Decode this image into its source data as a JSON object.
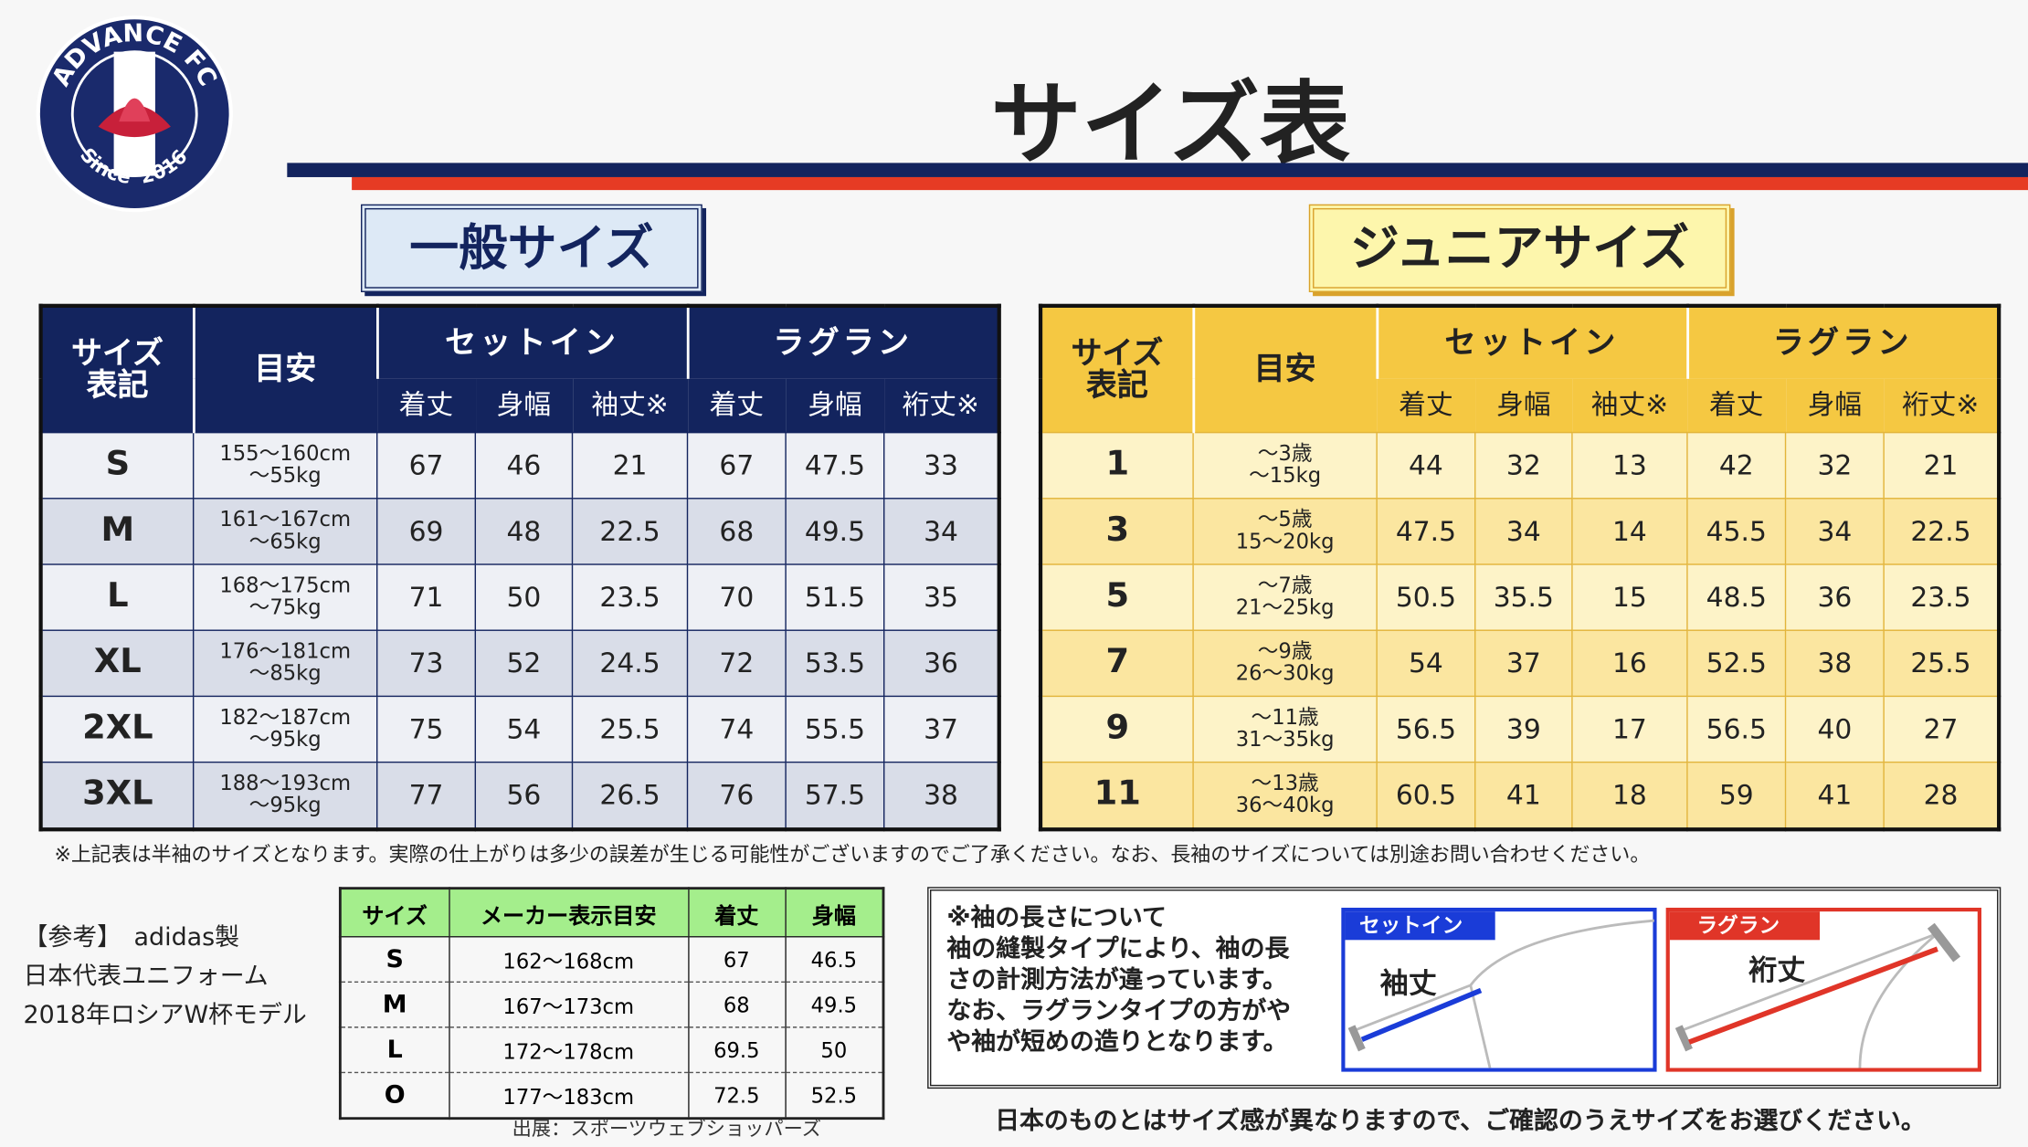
{
  "logo": {
    "name": "ADVANCE FC",
    "since": "Since",
    "year": "2016"
  },
  "title": "サイズ表",
  "general": {
    "heading": "一般サイズ",
    "headers": {
      "size": [
        "サイズ",
        "表記"
      ],
      "guide": "目安",
      "groups": [
        "セットイン",
        "ラグラン"
      ],
      "sub": [
        "着丈",
        "身幅",
        "袖丈※",
        "着丈",
        "身幅",
        "裄丈※"
      ]
    },
    "rows": [
      {
        "size": "S",
        "guide": [
          "155～160cm",
          "～55kg"
        ],
        "values": [
          67,
          46,
          21,
          67,
          47.5,
          33
        ]
      },
      {
        "size": "M",
        "guide": [
          "161～167cm",
          "～65kg"
        ],
        "values": [
          69,
          48,
          22.5,
          68,
          49.5,
          34
        ]
      },
      {
        "size": "L",
        "guide": [
          "168～175cm",
          "～75kg"
        ],
        "values": [
          71,
          50,
          23.5,
          70,
          51.5,
          35
        ]
      },
      {
        "size": "XL",
        "guide": [
          "176～181cm",
          "～85kg"
        ],
        "values": [
          73,
          52,
          24.5,
          72,
          53.5,
          36
        ]
      },
      {
        "size": "2XL",
        "guide": [
          "182～187cm",
          "～95kg"
        ],
        "values": [
          75,
          54,
          25.5,
          74,
          55.5,
          37
        ]
      },
      {
        "size": "3XL",
        "guide": [
          "188～193cm",
          "～95kg"
        ],
        "values": [
          77,
          56,
          26.5,
          76,
          57.5,
          38
        ]
      }
    ]
  },
  "junior": {
    "heading": "ジュニアサイズ",
    "headers": {
      "size": [
        "サイズ",
        "表記"
      ],
      "guide": "目安",
      "groups": [
        "セットイン",
        "ラグラン"
      ],
      "sub": [
        "着丈",
        "身幅",
        "袖丈※",
        "着丈",
        "身幅",
        "裄丈※"
      ]
    },
    "rows": [
      {
        "size": "1",
        "guide": [
          "～3歳",
          "～15kg"
        ],
        "values": [
          44,
          32,
          13,
          42,
          32,
          21
        ]
      },
      {
        "size": "3",
        "guide": [
          "～5歳",
          "15～20kg"
        ],
        "values": [
          47.5,
          34,
          14,
          45.5,
          34,
          22.5
        ]
      },
      {
        "size": "5",
        "guide": [
          "～7歳",
          "21～25kg"
        ],
        "values": [
          50.5,
          35.5,
          15,
          48.5,
          36,
          23.5
        ]
      },
      {
        "size": "7",
        "guide": [
          "～9歳",
          "26～30kg"
        ],
        "values": [
          54,
          37,
          16,
          52.5,
          38,
          25.5
        ]
      },
      {
        "size": "9",
        "guide": [
          "～11歳",
          "31～35kg"
        ],
        "values": [
          56.5,
          39,
          17,
          56.5,
          40,
          27
        ]
      },
      {
        "size": "11",
        "guide": [
          "～13歳",
          "36～40kg"
        ],
        "values": [
          60.5,
          41,
          18,
          59,
          41,
          28
        ]
      }
    ]
  },
  "note": "※上記表は半袖のサイズとなります。実際の仕上がりは多少の誤差が生じる可能性がございますのでご了承ください。なお、長袖のサイズについては別途お問い合わせください。",
  "reference": {
    "label": [
      "【参考】　adidas製",
      "日本代表ユニフォーム",
      "2018年ロシアW杯モデル"
    ],
    "headers": [
      "サイズ",
      "メーカー表示目安",
      "着丈",
      "身幅"
    ],
    "rows": [
      [
        "S",
        "162～168cm",
        67,
        46.5
      ],
      [
        "M",
        "167～173cm",
        68,
        49.5
      ],
      [
        "L",
        "172～178cm",
        69.5,
        50
      ],
      [
        "O",
        "177～183cm",
        72.5,
        52.5
      ]
    ],
    "source": "出展：スポーツウェブショッパーズ"
  },
  "sleeve": {
    "text": [
      "※袖の長さについて",
      "袖の縫製タイプにより、袖の長",
      "さの計測方法が違っています。",
      "なお、ラグランタイプの方がや",
      "や袖が短めの造りとなります。"
    ],
    "setin": {
      "tag": "セットイン",
      "label": "袖丈"
    },
    "raglan": {
      "tag": "ラグラン",
      "label": "裄丈"
    }
  },
  "footer": "日本のものとはサイズ感が異なりますので、ご確認のうえサイズをお選びください。"
}
